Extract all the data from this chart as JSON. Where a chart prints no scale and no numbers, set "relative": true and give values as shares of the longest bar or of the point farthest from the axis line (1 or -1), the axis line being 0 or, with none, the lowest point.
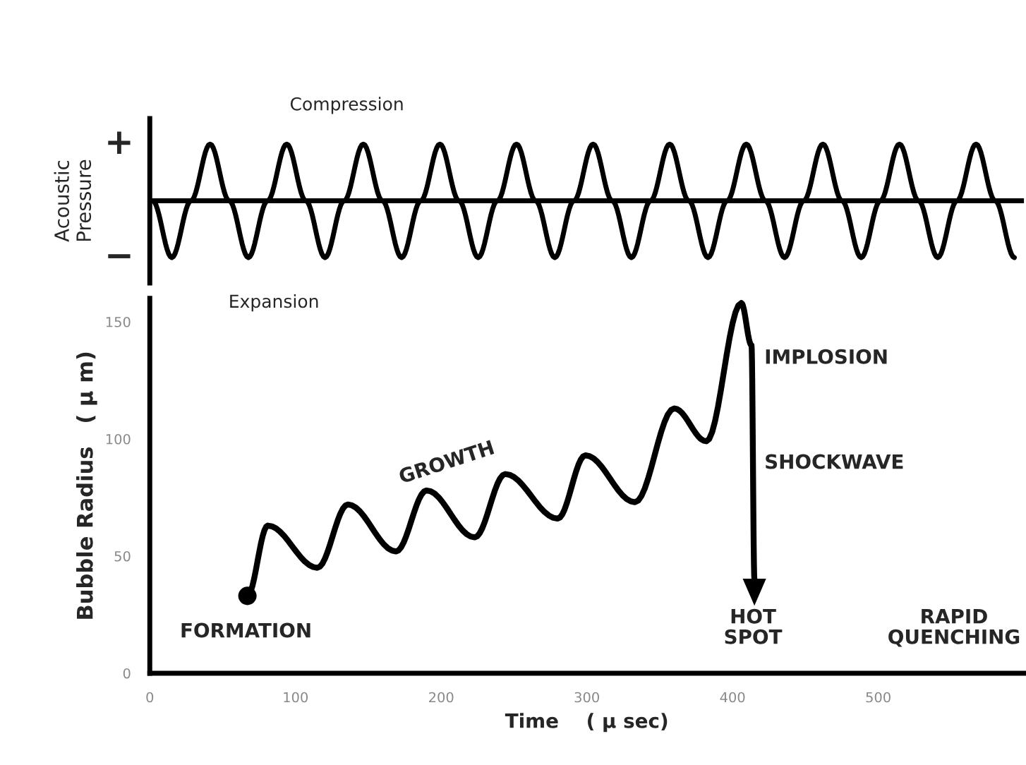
{
  "chart_data": [
    {
      "type": "line",
      "ylabel": "Acoustic\nPressure",
      "categories": [
        null,
        null,
        null,
        null,
        null,
        null,
        null,
        null,
        null,
        null,
        null,
        null,
        null,
        null,
        null,
        null,
        null,
        null,
        null,
        null,
        null,
        null,
        null,
        null,
        null,
        null,
        null,
        null,
        null,
        null,
        null,
        null,
        null,
        null,
        null,
        null,
        null,
        null,
        null,
        null,
        null,
        null,
        null,
        null,
        null,
        null
      ],
      "series": [
        {
          "color": "#000000",
          "values": [
            0,
            -1,
            0,
            1,
            0,
            -1,
            0,
            1,
            0,
            -1,
            0,
            1,
            0,
            -1,
            0,
            1,
            0,
            -1,
            0,
            1,
            0,
            -1,
            0,
            1,
            0,
            -1,
            0,
            1,
            0,
            -1,
            0,
            1,
            0,
            -1,
            0,
            1,
            0,
            -1,
            0,
            1,
            0,
            -1,
            0,
            1,
            0,
            -1
          ]
        }
      ],
      "relative": true,
      "ref_lines": [
        {
          "axis": "y",
          "value": 0,
          "color": "#000000"
        }
      ],
      "annotations": [
        "+",
        "−",
        "Compression",
        "Expansion"
      ],
      "grid": false
    },
    {
      "type": "line",
      "xlabel": "Time    ( µ sec)",
      "ylabel": "Bubble Radius   ( µ m)",
      "series": [
        {
          "type": "line",
          "color": "#000000",
          "x": [
            67,
            81,
            115,
            136,
            169,
            190,
            223,
            244,
            280,
            299,
            333,
            360,
            382,
            406,
            413,
            415
          ],
          "values": [
            33,
            63,
            45,
            72,
            52,
            78,
            58,
            85,
            66,
            93,
            73,
            113,
            99,
            158,
            140,
            40
          ]
        },
        {
          "type": "scatter",
          "color": "#000000",
          "x": [
            67
          ],
          "values": [
            33
          ]
        }
      ],
      "xlim": [
        0,
        600
      ],
      "xticks": [
        0,
        100,
        200,
        300,
        400,
        500
      ],
      "ylim": [
        0,
        160
      ],
      "yticks": [
        0,
        50,
        100,
        150
      ],
      "annotations": [
        "FORMATION",
        "GROWTH",
        "IMPLOSION",
        "SHOCKWAVE",
        "HOT\nSPOT",
        "RAPID\nQUENCHING"
      ],
      "grid": false
    }
  ]
}
